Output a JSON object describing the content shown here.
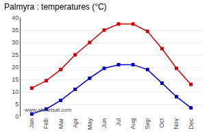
{
  "chart_data": {
    "type": "line",
    "title": "Palmyra : temperatures (°C)",
    "categories": [
      "Jan",
      "Feb",
      "Mar",
      "Apr",
      "May",
      "Jun",
      "Jul",
      "Aug",
      "Sep",
      "Oct",
      "Nov",
      "Dec"
    ],
    "series": [
      {
        "color": "#cc0000",
        "marker": "square",
        "values": [
          11.5,
          14.5,
          19.0,
          25.0,
          30.0,
          35.0,
          37.5,
          37.5,
          34.5,
          27.5,
          19.5,
          13.0
        ]
      },
      {
        "color": "#0000bb",
        "marker": "square",
        "values": [
          1.0,
          3.0,
          6.5,
          11.0,
          15.5,
          19.5,
          21.0,
          21.0,
          19.0,
          13.5,
          8.0,
          3.5
        ]
      }
    ],
    "ylim": [
      0,
      40
    ],
    "yticks": [
      0,
      5,
      10,
      15,
      20,
      25,
      30,
      35,
      40
    ],
    "grid": true,
    "annotations": [
      "www.allmetsat.com"
    ]
  }
}
